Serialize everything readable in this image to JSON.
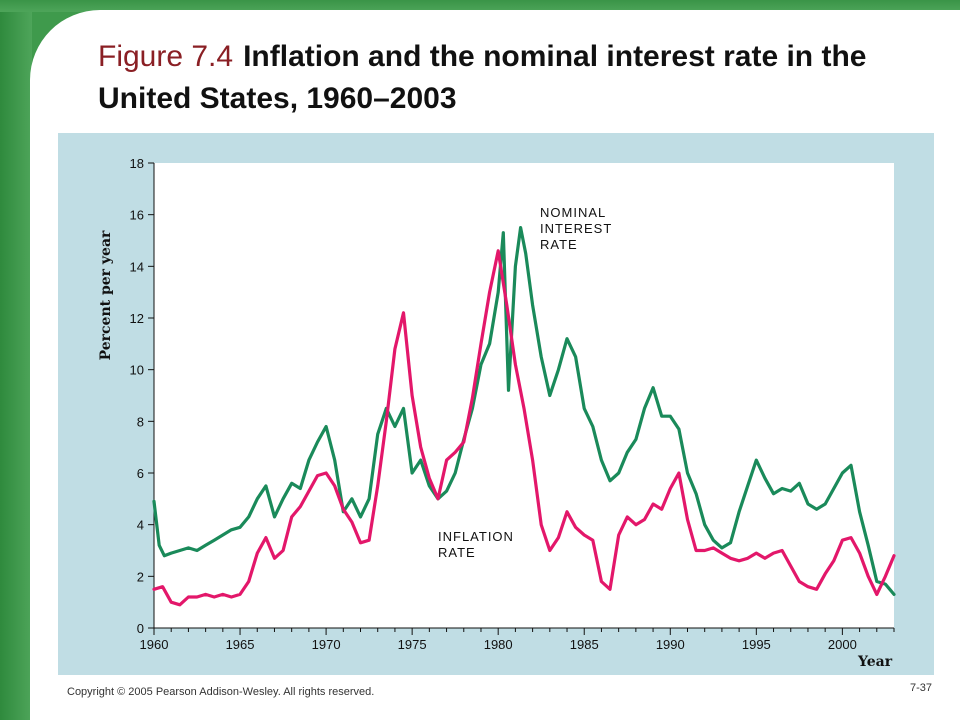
{
  "slide": {
    "figure_label": "Figure 7.4",
    "title": "Inflation and the nominal interest rate in the United States, 1960–2003",
    "footer": "Copyright © 2005 Pearson Addison-Wesley. All rights reserved.",
    "page_number": "7-37"
  },
  "colors": {
    "nominal": "#1a8a5a",
    "inflation": "#e3176a",
    "panel": "#c0dde4",
    "frame": "#3f9a4c"
  },
  "chart_data": {
    "type": "line",
    "ylabel": "Percent per year",
    "xlabel": "Year",
    "xlim": [
      1960,
      2003
    ],
    "ylim": [
      0,
      18
    ],
    "x_ticks": [
      "1960",
      "1965",
      "1970",
      "1975",
      "1980",
      "1985",
      "1990",
      "1995",
      "2000"
    ],
    "y_ticks": [
      "0",
      "2",
      "4",
      "6",
      "8",
      "10",
      "12",
      "14",
      "16",
      "18"
    ],
    "annotations": [
      {
        "text": [
          "NOMINAL",
          "INTEREST",
          "RATE"
        ]
      },
      {
        "text": [
          "INFLATION",
          "RATE"
        ]
      }
    ],
    "series": [
      {
        "name": "NOMINAL INTEREST RATE",
        "x": [
          1960,
          1960.3,
          1960.6,
          1961,
          1961.5,
          1962,
          1962.5,
          1963,
          1963.5,
          1964,
          1964.5,
          1965,
          1965.5,
          1966,
          1966.5,
          1967,
          1967.5,
          1968,
          1968.5,
          1969,
          1969.5,
          1970,
          1970.5,
          1971,
          1971.5,
          1972,
          1972.5,
          1973,
          1973.5,
          1974,
          1974.5,
          1975,
          1975.5,
          1976,
          1976.5,
          1977,
          1977.5,
          1978,
          1978.5,
          1979,
          1979.5,
          1980,
          1980.3,
          1980.6,
          1981,
          1981.3,
          1981.6,
          1982,
          1982.5,
          1983,
          1983.5,
          1984,
          1984.5,
          1985,
          1985.5,
          1986,
          1986.5,
          1987,
          1987.5,
          1988,
          1988.5,
          1989,
          1989.5,
          1990,
          1990.5,
          1991,
          1991.5,
          1992,
          1992.5,
          1993,
          1993.5,
          1994,
          1994.5,
          1995,
          1995.5,
          1996,
          1996.5,
          1997,
          1997.5,
          1998,
          1998.5,
          1999,
          1999.5,
          2000,
          2000.5,
          2001,
          2001.5,
          2002,
          2002.5,
          2003
        ],
        "values": [
          4.9,
          3.2,
          2.8,
          2.9,
          3.0,
          3.1,
          3.0,
          3.2,
          3.4,
          3.6,
          3.8,
          3.9,
          4.3,
          5.0,
          5.5,
          4.3,
          5.0,
          5.6,
          5.4,
          6.5,
          7.2,
          7.8,
          6.5,
          4.5,
          5.0,
          4.3,
          5.0,
          7.5,
          8.5,
          7.8,
          8.5,
          6.0,
          6.5,
          5.5,
          5.0,
          5.3,
          6.0,
          7.3,
          8.5,
          10.2,
          11.0,
          13.0,
          15.3,
          9.2,
          14.0,
          15.5,
          14.5,
          12.5,
          10.5,
          9.0,
          10.0,
          11.2,
          10.5,
          8.5,
          7.8,
          6.5,
          5.7,
          6.0,
          6.8,
          7.3,
          8.5,
          9.3,
          8.2,
          8.2,
          7.7,
          6.0,
          5.2,
          4.0,
          3.4,
          3.1,
          3.3,
          4.5,
          5.5,
          6.5,
          5.8,
          5.2,
          5.4,
          5.3,
          5.6,
          4.8,
          4.6,
          4.8,
          5.4,
          6.0,
          6.3,
          4.5,
          3.2,
          1.8,
          1.7,
          1.3
        ]
      },
      {
        "name": "INFLATION RATE",
        "x": [
          1960,
          1960.5,
          1961,
          1961.5,
          1962,
          1962.5,
          1963,
          1963.5,
          1964,
          1964.5,
          1965,
          1965.5,
          1966,
          1966.5,
          1967,
          1967.5,
          1968,
          1968.5,
          1969,
          1969.5,
          1970,
          1970.5,
          1971,
          1971.5,
          1972,
          1972.5,
          1973,
          1973.5,
          1974,
          1974.5,
          1975,
          1975.5,
          1976,
          1976.5,
          1977,
          1977.5,
          1978,
          1978.5,
          1979,
          1979.5,
          1980,
          1980.5,
          1981,
          1981.5,
          1982,
          1982.5,
          1983,
          1983.5,
          1984,
          1984.5,
          1985,
          1985.5,
          1986,
          1986.5,
          1987,
          1987.5,
          1988,
          1988.5,
          1989,
          1989.5,
          1990,
          1990.5,
          1991,
          1991.5,
          1992,
          1992.5,
          1993,
          1993.5,
          1994,
          1994.5,
          1995,
          1995.5,
          1996,
          1996.5,
          1997,
          1997.5,
          1998,
          1998.5,
          1999,
          1999.5,
          2000,
          2000.5,
          2001,
          2001.5,
          2002,
          2002.5,
          2003
        ],
        "values": [
          1.5,
          1.6,
          1.0,
          0.9,
          1.2,
          1.2,
          1.3,
          1.2,
          1.3,
          1.2,
          1.3,
          1.8,
          2.9,
          3.5,
          2.7,
          3.0,
          4.3,
          4.7,
          5.3,
          5.9,
          6.0,
          5.5,
          4.6,
          4.1,
          3.3,
          3.4,
          5.5,
          8.0,
          10.8,
          12.2,
          9.0,
          7.0,
          5.8,
          5.0,
          6.5,
          6.8,
          7.2,
          8.9,
          11.0,
          13.0,
          14.6,
          12.5,
          10.2,
          8.5,
          6.5,
          4.0,
          3.0,
          3.5,
          4.5,
          3.9,
          3.6,
          3.4,
          1.8,
          1.5,
          3.6,
          4.3,
          4.0,
          4.2,
          4.8,
          4.6,
          5.4,
          6.0,
          4.2,
          3.0,
          3.0,
          3.1,
          2.9,
          2.7,
          2.6,
          2.7,
          2.9,
          2.7,
          2.9,
          3.0,
          2.4,
          1.8,
          1.6,
          1.5,
          2.1,
          2.6,
          3.4,
          3.5,
          2.9,
          2.0,
          1.3,
          2.0,
          2.8
        ]
      }
    ]
  }
}
